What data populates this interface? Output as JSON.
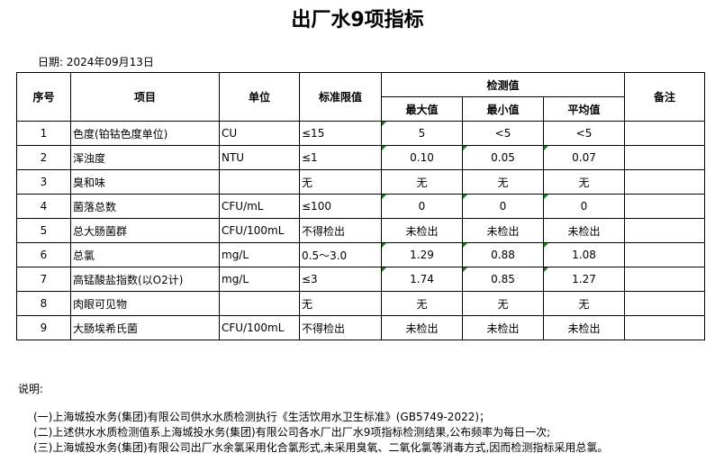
{
  "title": "出厂水9项指标",
  "date": "日期: 2024年09月13日",
  "headers": {
    "seq": "序号",
    "item": "项目",
    "unit": "单位",
    "limit": "标准限值",
    "measured": "检测值",
    "max": "最大值",
    "min": "最小值",
    "avg": "平均值",
    "remark": "备注"
  },
  "rows": [
    {
      "seq": "1",
      "item": "色度(铂钴色度单位)",
      "unit": "CU",
      "limit": "≤15",
      "max": "5",
      "min": "<5",
      "avg": "<5",
      "flags": [
        1,
        0,
        0
      ]
    },
    {
      "seq": "2",
      "item": "浑浊度",
      "unit": "NTU",
      "limit": "≤1",
      "max": "0.10",
      "min": "0.05",
      "avg": "0.07",
      "flags": [
        1,
        1,
        1
      ]
    },
    {
      "seq": "3",
      "item": "臭和味",
      "unit": "",
      "limit": "无",
      "max": "无",
      "min": "无",
      "avg": "无",
      "flags": [
        0,
        0,
        0
      ]
    },
    {
      "seq": "4",
      "item": "菌落总数",
      "unit": "CFU/mL",
      "limit": "≤100",
      "max": "0",
      "min": "0",
      "avg": "0",
      "flags": [
        1,
        1,
        1
      ]
    },
    {
      "seq": "5",
      "item": "总大肠菌群",
      "unit": "CFU/100mL",
      "limit": "不得检出",
      "max": "未检出",
      "min": "未检出",
      "avg": "未检出",
      "flags": [
        0,
        0,
        0
      ]
    },
    {
      "seq": "6",
      "item": "总氯",
      "unit": "mg/L",
      "limit": "0.5～3.0",
      "max": "1.29",
      "min": "0.88",
      "avg": "1.08",
      "flags": [
        1,
        1,
        1
      ]
    },
    {
      "seq": "7",
      "item": "高锰酸盐指数(以O2计)",
      "unit": "mg/L",
      "limit": "≤3",
      "max": "1.74",
      "min": "0.85",
      "avg": "1.27",
      "flags": [
        1,
        1,
        1
      ]
    },
    {
      "seq": "8",
      "item": "肉眼可见物",
      "unit": "",
      "limit": "无",
      "max": "无",
      "min": "无",
      "avg": "无",
      "flags": [
        0,
        0,
        0
      ]
    },
    {
      "seq": "9",
      "item": "大肠埃希氏菌",
      "unit": "CFU/100mL",
      "limit": "不得检出",
      "max": "未检出",
      "min": "未检出",
      "avg": "未检出",
      "flags": [
        0,
        0,
        0
      ]
    }
  ],
  "error_marker_color": "#1a7f1a",
  "notes_label": "说明:",
  "notes": [
    "(一)上海城投水务(集团)有限公司供水水质检测执行《生活饮用水卫生标准》(GB5749-2022)；",
    "(二)上述供水水质检测值系上海城投水务(集团)有限公司各水厂出厂水9项指标检测结果,公布频率为每日一次;",
    "(三)上海城投水务(集团)有限公司出厂水余氯采用化合氯形式,未采用臭氧、二氧化氯等消毒方式,因而检测指标采用总氯。"
  ]
}
